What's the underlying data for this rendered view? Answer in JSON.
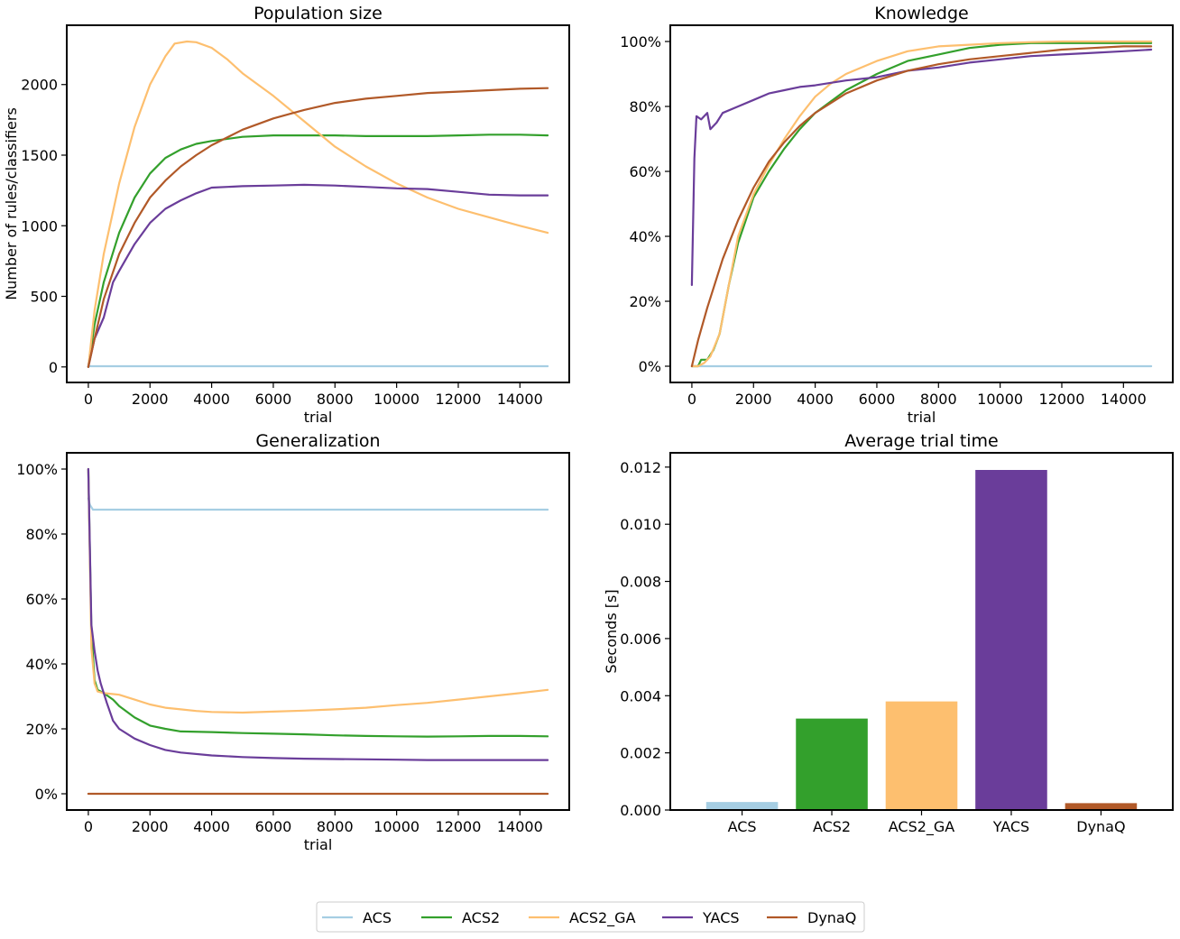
{
  "legend": {
    "placement": "bottom-center",
    "entries": [
      {
        "name": "ACS",
        "color": "#a6cee3"
      },
      {
        "name": "ACS2",
        "color": "#33a02c"
      },
      {
        "name": "ACS2_GA",
        "color": "#fdbf6f"
      },
      {
        "name": "YACS",
        "color": "#6a3d9a"
      },
      {
        "name": "DynaQ",
        "color": "#b15928"
      }
    ]
  },
  "chart_data": [
    {
      "type": "line",
      "title": "Population size",
      "xlabel": "trial",
      "ylabel": "Number of rules/classifiers",
      "xlim": [
        -700,
        15600
      ],
      "ylim": [
        -110,
        2420
      ],
      "xticks": [
        0,
        2000,
        4000,
        6000,
        8000,
        10000,
        12000,
        14000
      ],
      "yticks": [
        0,
        500,
        1000,
        1500,
        2000
      ],
      "ytick_labels": [
        "0",
        "500",
        "1000",
        "1500",
        "2000"
      ],
      "series": [
        {
          "name": "ACS",
          "color": "#a6cee3",
          "x": [
            0,
            14900
          ],
          "y": [
            5,
            5
          ]
        },
        {
          "name": "ACS2",
          "color": "#33a02c",
          "x": [
            0,
            200,
            500,
            1000,
            1500,
            2000,
            2500,
            3000,
            3500,
            4000,
            5000,
            6000,
            7000,
            8000,
            9000,
            10000,
            11000,
            12000,
            13000,
            14000,
            14900
          ],
          "y": [
            0,
            300,
            600,
            950,
            1200,
            1370,
            1480,
            1540,
            1580,
            1600,
            1630,
            1640,
            1640,
            1640,
            1635,
            1635,
            1635,
            1640,
            1645,
            1645,
            1640
          ]
        },
        {
          "name": "ACS2_GA",
          "color": "#fdbf6f",
          "x": [
            0,
            200,
            500,
            1000,
            1500,
            2000,
            2500,
            2800,
            3200,
            3500,
            4000,
            4500,
            5000,
            6000,
            7000,
            8000,
            9000,
            10000,
            11000,
            12000,
            13000,
            14000,
            14900
          ],
          "y": [
            0,
            400,
            800,
            1300,
            1700,
            2000,
            2200,
            2290,
            2305,
            2300,
            2260,
            2180,
            2080,
            1920,
            1740,
            1560,
            1420,
            1300,
            1200,
            1120,
            1060,
            1000,
            950
          ]
        },
        {
          "name": "YACS",
          "color": "#6a3d9a",
          "x": [
            0,
            200,
            500,
            800,
            1000,
            1500,
            2000,
            2500,
            3000,
            3500,
            4000,
            5000,
            6000,
            7000,
            8000,
            9000,
            10000,
            11000,
            12000,
            13000,
            14000,
            14900
          ],
          "y": [
            0,
            200,
            350,
            600,
            680,
            870,
            1020,
            1120,
            1180,
            1230,
            1270,
            1280,
            1285,
            1290,
            1285,
            1275,
            1265,
            1260,
            1240,
            1220,
            1215,
            1215
          ]
        },
        {
          "name": "DynaQ",
          "color": "#b15928",
          "x": [
            0,
            200,
            500,
            1000,
            1500,
            2000,
            2500,
            3000,
            3500,
            4000,
            5000,
            6000,
            7000,
            8000,
            9000,
            10000,
            11000,
            12000,
            13000,
            14000,
            14900
          ],
          "y": [
            0,
            200,
            480,
            800,
            1020,
            1200,
            1320,
            1420,
            1500,
            1570,
            1680,
            1760,
            1820,
            1870,
            1900,
            1920,
            1940,
            1950,
            1960,
            1970,
            1975
          ]
        }
      ]
    },
    {
      "type": "line",
      "title": "Knowledge",
      "xlabel": "trial",
      "ylabel": "",
      "xlim": [
        -700,
        15600
      ],
      "ylim": [
        -5,
        105
      ],
      "xticks": [
        0,
        2000,
        4000,
        6000,
        8000,
        10000,
        12000,
        14000
      ],
      "yticks": [
        0,
        20,
        40,
        60,
        80,
        100
      ],
      "ytick_labels": [
        "0%",
        "20%",
        "40%",
        "60%",
        "80%",
        "100%"
      ],
      "series": [
        {
          "name": "ACS",
          "color": "#a6cee3",
          "x": [
            0,
            14900
          ],
          "y": [
            0,
            0
          ]
        },
        {
          "name": "ACS2",
          "color": "#33a02c",
          "x": [
            0,
            200,
            300,
            500,
            700,
            900,
            1200,
            1500,
            2000,
            2500,
            3000,
            3500,
            4000,
            5000,
            6000,
            7000,
            8000,
            9000,
            10000,
            11000,
            12000,
            13000,
            14000,
            14900
          ],
          "y": [
            0,
            0,
            2,
            2,
            5,
            10,
            25,
            38,
            52,
            60,
            67,
            73,
            78,
            85,
            90,
            94,
            96,
            98,
            99,
            99.5,
            99.5,
            99.5,
            99.5,
            99.5
          ]
        },
        {
          "name": "ACS2_GA",
          "color": "#fdbf6f",
          "x": [
            0,
            200,
            400,
            600,
            900,
            1200,
            1500,
            2000,
            2500,
            3000,
            3500,
            4000,
            4500,
            5000,
            6000,
            7000,
            8000,
            9000,
            10000,
            11000,
            12000,
            13000,
            14000,
            14900
          ],
          "y": [
            0,
            0,
            1,
            3,
            10,
            25,
            40,
            53,
            62,
            70,
            77,
            83,
            87,
            90,
            94,
            97,
            98.5,
            99,
            99.5,
            99.8,
            100,
            100,
            100,
            100
          ]
        },
        {
          "name": "YACS",
          "color": "#6a3d9a",
          "x": [
            0,
            80,
            150,
            300,
            500,
            600,
            800,
            1000,
            1500,
            2000,
            2500,
            3000,
            3500,
            4000,
            5000,
            6000,
            7000,
            8000,
            9000,
            10000,
            11000,
            12000,
            13000,
            14000,
            14900
          ],
          "y": [
            25,
            64,
            77,
            76,
            78,
            73,
            75,
            78,
            80,
            82,
            84,
            85,
            86,
            86.5,
            88,
            89,
            91,
            92,
            93.5,
            94.5,
            95.5,
            96,
            96.5,
            97,
            97.5
          ]
        },
        {
          "name": "DynaQ",
          "color": "#b15928",
          "x": [
            0,
            200,
            500,
            1000,
            1500,
            2000,
            2500,
            3000,
            3500,
            4000,
            5000,
            6000,
            7000,
            8000,
            9000,
            10000,
            11000,
            12000,
            13000,
            14000,
            14900
          ],
          "y": [
            0,
            8,
            18,
            33,
            45,
            55,
            63,
            69,
            74,
            78,
            84,
            88,
            91,
            93,
            94.5,
            95.5,
            96.5,
            97.5,
            98,
            98.5,
            98.5
          ]
        }
      ]
    },
    {
      "type": "line",
      "title": "Generalization",
      "xlabel": "trial",
      "ylabel": "",
      "xlim": [
        -700,
        15600
      ],
      "ylim": [
        -5,
        105
      ],
      "xticks": [
        0,
        2000,
        4000,
        6000,
        8000,
        10000,
        12000,
        14000
      ],
      "yticks": [
        0,
        20,
        40,
        60,
        80,
        100
      ],
      "ytick_labels": [
        "0%",
        "20%",
        "40%",
        "60%",
        "80%",
        "100%"
      ],
      "series": [
        {
          "name": "ACS",
          "color": "#a6cee3",
          "x": [
            0,
            50,
            150,
            14900
          ],
          "y": [
            91,
            89,
            87.5,
            87.5
          ]
        },
        {
          "name": "ACS2",
          "color": "#33a02c",
          "x": [
            0,
            100,
            200,
            300,
            500,
            800,
            1000,
            1500,
            2000,
            2500,
            3000,
            4000,
            5000,
            6000,
            7000,
            8000,
            9000,
            10000,
            11000,
            12000,
            13000,
            14000,
            14900
          ],
          "y": [
            100,
            50,
            35,
            32,
            31,
            29,
            27,
            23.5,
            21,
            20,
            19.2,
            19,
            18.7,
            18.5,
            18.3,
            18,
            17.8,
            17.7,
            17.6,
            17.7,
            17.8,
            17.8,
            17.7
          ]
        },
        {
          "name": "ACS2_GA",
          "color": "#fdbf6f",
          "x": [
            0,
            100,
            200,
            300,
            500,
            1000,
            1500,
            2000,
            2500,
            3000,
            3500,
            4000,
            5000,
            6000,
            7000,
            8000,
            9000,
            10000,
            11000,
            12000,
            13000,
            14000,
            14900
          ],
          "y": [
            100,
            45,
            34,
            31.5,
            31,
            30.5,
            29,
            27.5,
            26.5,
            26,
            25.5,
            25.2,
            25,
            25.3,
            25.6,
            26,
            26.5,
            27.3,
            28,
            29,
            30,
            31,
            32
          ]
        },
        {
          "name": "YACS",
          "color": "#6a3d9a",
          "x": [
            0,
            100,
            200,
            300,
            400,
            600,
            800,
            1000,
            1500,
            2000,
            2500,
            3000,
            4000,
            5000,
            6000,
            7000,
            8000,
            9000,
            10000,
            11000,
            12000,
            13000,
            14000,
            14900
          ],
          "y": [
            100,
            52,
            44,
            38,
            34,
            28,
            22.5,
            20,
            17,
            15,
            13.5,
            12.7,
            11.8,
            11.3,
            11,
            10.8,
            10.7,
            10.6,
            10.5,
            10.4,
            10.4,
            10.4,
            10.4,
            10.4
          ]
        },
        {
          "name": "DynaQ",
          "color": "#b15928",
          "x": [
            0,
            14900
          ],
          "y": [
            0,
            0
          ]
        }
      ]
    },
    {
      "type": "bar",
      "title": "Average trial time",
      "xlabel": "",
      "ylabel": "Seconds [s]",
      "categories": [
        "ACS",
        "ACS2",
        "ACS2_GA",
        "YACS",
        "DynaQ"
      ],
      "values": [
        0.00028,
        0.0032,
        0.0038,
        0.0119,
        0.00024
      ],
      "colors": [
        "#a6cee3",
        "#33a02c",
        "#fdbf6f",
        "#6a3d9a",
        "#b15928"
      ],
      "ylim": [
        0,
        0.0125
      ],
      "yticks": [
        0,
        0.002,
        0.004,
        0.006,
        0.008,
        0.01,
        0.012
      ],
      "ytick_labels": [
        "0.000",
        "0.002",
        "0.004",
        "0.006",
        "0.008",
        "0.010",
        "0.012"
      ]
    }
  ]
}
